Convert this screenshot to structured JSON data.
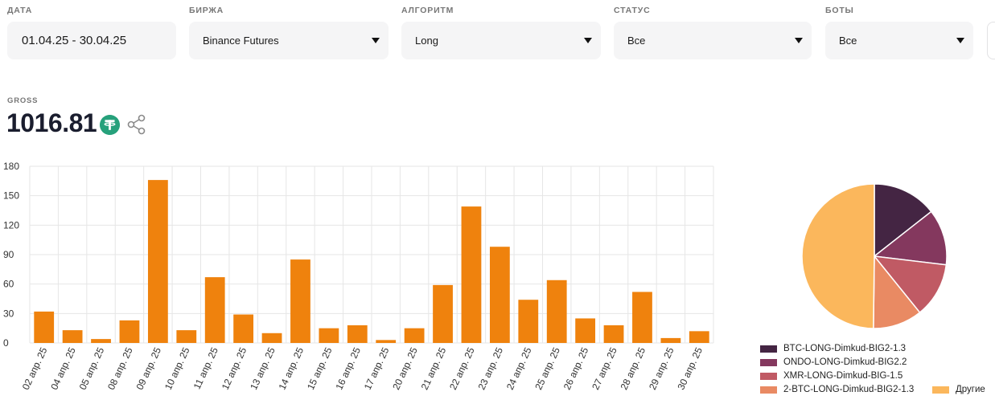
{
  "filters": [
    {
      "label": "ДАТА",
      "value": "01.04.25 - 30.04.25",
      "dropdown": false
    },
    {
      "label": "БИРЖА",
      "value": "Binance Futures",
      "dropdown": true
    },
    {
      "label": "АЛГОРИТМ",
      "value": "Long",
      "dropdown": true
    },
    {
      "label": "СТАТУС",
      "value": "Все",
      "dropdown": true
    },
    {
      "label": "БОТЫ",
      "value": "Все",
      "dropdown": true
    }
  ],
  "gross": {
    "label": "GROSS",
    "value": "1016.81",
    "currency_icon": "tether-icon",
    "share_icon": "share-icon"
  },
  "colors": {
    "bar": "#ef820d",
    "grid": "#e6e6e6",
    "tether": "#26a17b"
  },
  "chart_data": [
    {
      "type": "bar",
      "title": "",
      "xlabel": "",
      "ylabel": "",
      "ylim": [
        0,
        180
      ],
      "yticks": [
        0,
        30,
        60,
        90,
        120,
        150,
        180
      ],
      "grid": true,
      "categories": [
        "02 апр. 25",
        "04 апр. 25",
        "05 апр. 25",
        "08 апр. 25",
        "09 апр. 25",
        "10 апр. 25",
        "11 апр. 25",
        "12 апр. 25",
        "13 апр. 25",
        "14 апр. 25",
        "15 апр. 25",
        "16 апр. 25",
        "17 апр. 25",
        "20 апр. 25",
        "21 апр. 25",
        "22 апр. 25",
        "23 апр. 25",
        "24 апр. 25",
        "25 апр. 25",
        "26 апр. 25",
        "27 апр. 25",
        "28 апр. 25",
        "29 апр. 25",
        "30 апр. 25"
      ],
      "values": [
        32,
        13,
        4,
        23,
        166,
        13,
        67,
        29,
        10,
        85,
        15,
        18,
        3,
        15,
        59,
        139,
        98,
        44,
        64,
        25,
        18,
        52,
        5,
        12
      ]
    },
    {
      "type": "pie",
      "slices": [
        {
          "name": "BTC-LONG-Dimkud-BIG2-1.3",
          "value": 14.4,
          "color": "#442543"
        },
        {
          "name": "ONDO-LONG-Dimkud-BIG2.2",
          "value": 12.5,
          "color": "#84385e"
        },
        {
          "name": "XMR-LONG-Dimkud-BIG-1.5",
          "value": 12.3,
          "color": "#c05a64"
        },
        {
          "name": "2-BTC-LONG-Dimkud-BIG2-1.3",
          "value": 11.0,
          "color": "#e98a63"
        },
        {
          "name": "Другие",
          "value": 49.8,
          "color": "#fbb75c"
        }
      ]
    }
  ]
}
